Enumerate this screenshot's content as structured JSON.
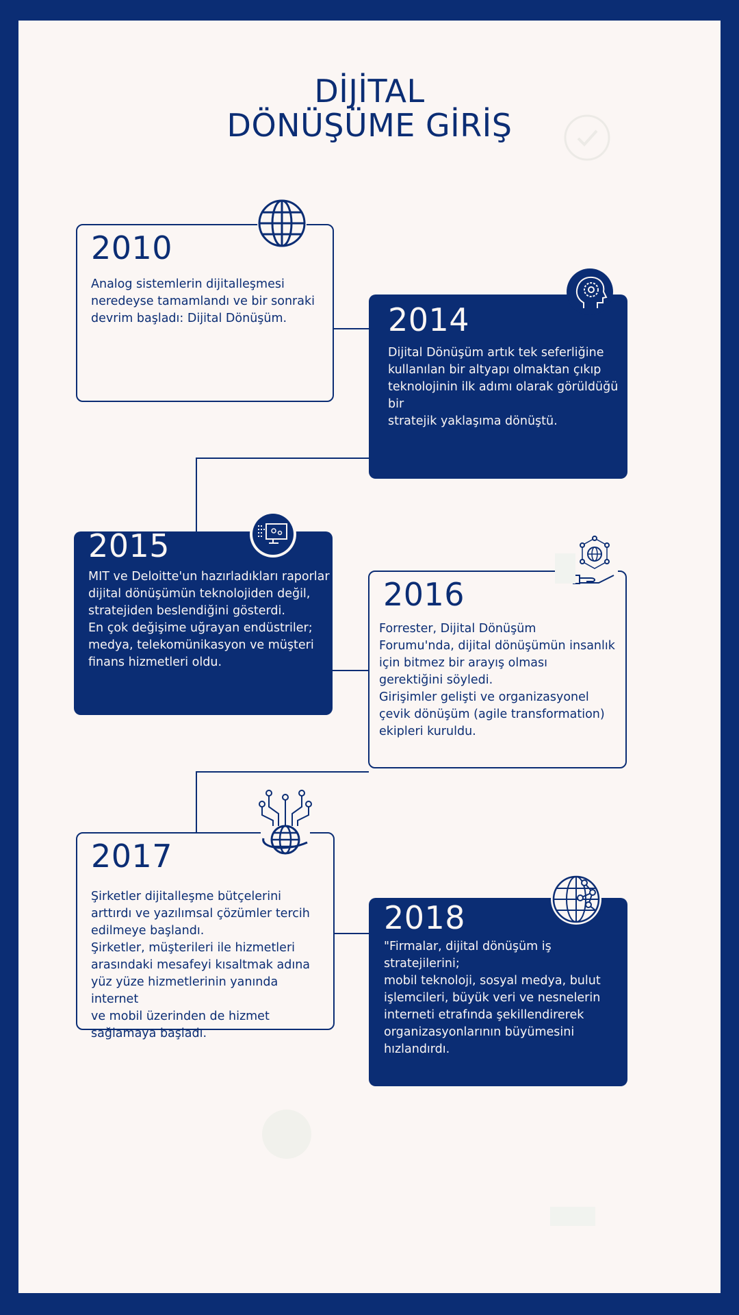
{
  "title": {
    "line1": "DİJİTAL",
    "line2": "DÖNÜŞÜME GİRİŞ"
  },
  "colors": {
    "primary": "#0b2d74",
    "background": "#fbf6f4"
  },
  "timeline": [
    {
      "year": "2010",
      "style": "outline",
      "icon": "globe-icon",
      "text": "Analog sistemlerin dijitalleşmesi\nneredeyse tamamlandı ve bir sonraki\ndevrim başladı: Dijital Dönüşüm."
    },
    {
      "year": "2014",
      "style": "filled",
      "icon": "head-gear-icon",
      "text": "Dijital Dönüşüm artık tek seferliğine\nkullanılan bir altyapı olmaktan çıkıp\nteknolojinin ilk adımı olarak görüldüğü bir\nstratejik yaklaşıma dönüştü."
    },
    {
      "year": "2015",
      "style": "filled",
      "icon": "computer-settings-icon",
      "text": " MIT ve Deloitte'un hazırladıkları raporlar\ndijital dönüşümün teknolojiden değil,\nstratejiden beslendiğini gösterdi.\nEn çok değişime uğrayan endüstriler;\nmedya, telekomünikasyon ve müşteri\nfinans hizmetleri oldu."
    },
    {
      "year": "2016",
      "style": "outline",
      "icon": "hand-network-globe-icon",
      "text": " Forrester, Dijital Dönüşüm\nForumu'nda, dijital dönüşümün insanlık\niçin bitmez bir arayış olması\ngerektiğini söyledi.\nGirişimler gelişti ve organizasyonel\nçevik dönüşüm (agile transformation)\nekipleri kuruldu."
    },
    {
      "year": "2017",
      "style": "outline",
      "icon": "connected-globe-icon",
      "text": " Şirketler dijitalleşme bütçelerini\narttırdı ve yazılımsal çözümler tercih\nedilmeye başlandı.\nŞirketler, müşterileri ile hizmetleri\narasındaki mesafeyi kısaltmak adına\nyüz yüze hizmetlerinin yanında internet\nve mobil üzerinden de hizmet\nsağlamaya başladı."
    },
    {
      "year": "2018",
      "style": "filled",
      "icon": "network-globe-icon",
      "text": " \"Firmalar, dijital dönüşüm iş stratejilerini;\nmobil teknoloji, sosyal medya, bulut\nişlemcileri, büyük veri ve nesnelerin\ninterneti etrafında şekillendirerek\norganizasyonlarının büyümesini\nhızlandırdı."
    }
  ]
}
